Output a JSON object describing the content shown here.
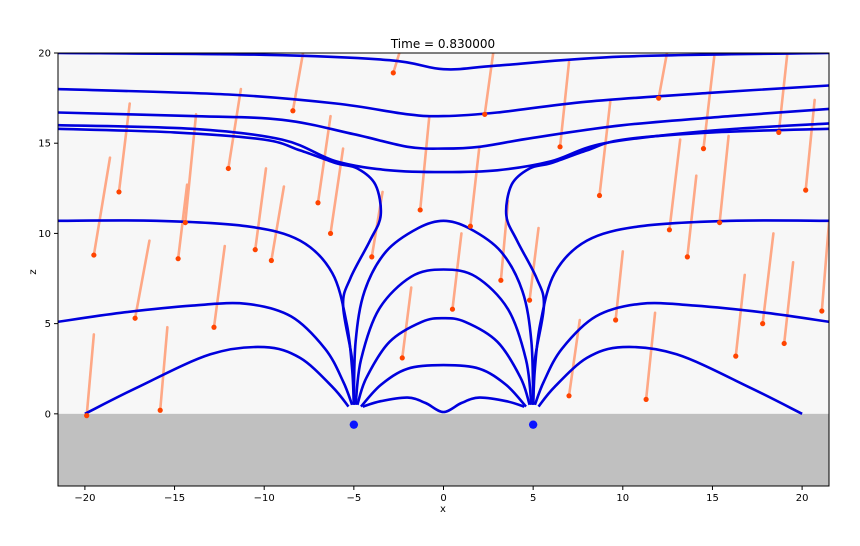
{
  "chart_data": {
    "type": "line",
    "title": "Time = 0.830000",
    "xlabel": "x",
    "ylabel": "z",
    "xlim": [
      -21.5,
      21.5
    ],
    "ylim": [
      -4,
      20
    ],
    "xticks": [
      -20,
      -15,
      -10,
      -5,
      0,
      5,
      10,
      15,
      20
    ],
    "yticks": [
      0,
      5,
      10,
      15,
      20
    ],
    "grid": false,
    "ground_color": "#c0c0c0",
    "background_color": "#f7f7f7",
    "line_color": "#0000dd",
    "particle_color": "#ff4400",
    "trail_color": "#ffa07a",
    "sources": [
      {
        "x": -5,
        "z": -0.6
      },
      {
        "x": 5,
        "z": -0.6
      }
    ],
    "field_lines": [
      {
        "points": [
          [
            -21.5,
            20.0
          ],
          [
            -10,
            19.9
          ],
          [
            -3,
            19.6
          ],
          [
            0,
            19.1
          ],
          [
            3,
            19.3
          ],
          [
            10,
            19.8
          ],
          [
            21.5,
            20.0
          ]
        ]
      },
      {
        "points": [
          [
            -21.5,
            18.0
          ],
          [
            -12,
            17.7
          ],
          [
            -6,
            17.2
          ],
          [
            -2,
            16.6
          ],
          [
            0,
            16.5
          ],
          [
            3,
            16.7
          ],
          [
            8,
            17.3
          ],
          [
            15,
            17.8
          ],
          [
            21.5,
            18.2
          ]
        ]
      },
      {
        "points": [
          [
            -21.5,
            16.7
          ],
          [
            -14,
            16.5
          ],
          [
            -9,
            16.3
          ],
          [
            -5,
            15.5
          ],
          [
            -2,
            14.8
          ],
          [
            0,
            14.7
          ],
          [
            2,
            14.8
          ],
          [
            5,
            15.3
          ],
          [
            10,
            16.0
          ],
          [
            16,
            16.5
          ],
          [
            21.5,
            16.9
          ]
        ]
      },
      {
        "points": [
          [
            -21.5,
            16.0
          ],
          [
            -14,
            15.8
          ],
          [
            -9,
            15.2
          ],
          [
            -6,
            14.0
          ],
          [
            -3,
            13.5
          ],
          [
            0,
            13.4
          ],
          [
            3,
            13.5
          ],
          [
            6,
            14.0
          ],
          [
            9,
            15.0
          ],
          [
            15,
            15.7
          ],
          [
            21.5,
            16.1
          ]
        ]
      },
      {
        "points": [
          [
            -21.5,
            10.7
          ],
          [
            -16,
            10.7
          ],
          [
            -11,
            10.4
          ],
          [
            -8,
            9.6
          ],
          [
            -6.2,
            7.8
          ],
          [
            -5.4,
            5.0
          ],
          [
            -5.1,
            2.5
          ],
          [
            -5.0,
            0.5
          ]
        ]
      },
      {
        "points": [
          [
            -21.5,
            5.1
          ],
          [
            -18,
            5.6
          ],
          [
            -14,
            6.0
          ],
          [
            -11,
            6.1
          ],
          [
            -8.5,
            5.4
          ],
          [
            -6.6,
            3.6
          ],
          [
            -5.6,
            1.8
          ],
          [
            -5.1,
            0.5
          ]
        ]
      },
      {
        "points": [
          [
            -20,
            0.0
          ],
          [
            -17,
            1.5
          ],
          [
            -13,
            3.3
          ],
          [
            -10,
            3.7
          ],
          [
            -8,
            3.1
          ],
          [
            -6.2,
            1.5
          ],
          [
            -5.3,
            0.4
          ]
        ]
      },
      {
        "points": [
          [
            -5.0,
            0.6
          ],
          [
            -5.1,
            3.0
          ],
          [
            -5.6,
            6.0
          ],
          [
            -5.2,
            7.5
          ],
          [
            -4.1,
            9.6
          ],
          [
            -3.5,
            11.0
          ],
          [
            -3.8,
            12.7
          ],
          [
            -4.8,
            13.6
          ],
          [
            -6,
            13.9
          ],
          [
            -8,
            14.6
          ],
          [
            -10,
            15.2
          ],
          [
            -15,
            15.6
          ],
          [
            -21.5,
            15.8
          ]
        ]
      }
    ],
    "particles": [
      {
        "head": [
          -19.5,
          8.8
        ],
        "tail": [
          -18.6,
          14.2
        ]
      },
      {
        "head": [
          -18.1,
          12.3
        ],
        "tail": [
          -17.5,
          17.2
        ]
      },
      {
        "head": [
          -17.2,
          5.3
        ],
        "tail": [
          -16.4,
          9.6
        ]
      },
      {
        "head": [
          -14.4,
          10.6
        ],
        "tail": [
          -13.8,
          16.6
        ]
      },
      {
        "head": [
          -12.0,
          13.6
        ],
        "tail": [
          -11.3,
          18.0
        ]
      },
      {
        "head": [
          -10.5,
          9.1
        ],
        "tail": [
          -9.9,
          13.6
        ]
      },
      {
        "head": [
          -9.6,
          8.5
        ],
        "tail": [
          -8.9,
          12.6
        ]
      },
      {
        "head": [
          -7.0,
          11.7
        ],
        "tail": [
          -6.3,
          16.5
        ]
      },
      {
        "head": [
          -6.3,
          10.0
        ],
        "tail": [
          -5.6,
          14.7
        ]
      },
      {
        "head": [
          -4.0,
          8.7
        ],
        "tail": [
          -3.4,
          12.3
        ]
      },
      {
        "head": [
          -2.3,
          3.1
        ],
        "tail": [
          -1.8,
          7.0
        ]
      },
      {
        "head": [
          -1.3,
          11.3
        ],
        "tail": [
          -0.8,
          16.4
        ]
      },
      {
        "head": [
          0.5,
          5.8
        ],
        "tail": [
          1.0,
          10.0
        ]
      },
      {
        "head": [
          1.5,
          10.4
        ],
        "tail": [
          2.0,
          14.8
        ]
      },
      {
        "head": [
          3.2,
          7.4
        ],
        "tail": [
          3.6,
          11.8
        ]
      },
      {
        "head": [
          4.8,
          6.3
        ],
        "tail": [
          5.3,
          10.3
        ]
      },
      {
        "head": [
          7.0,
          1.0
        ],
        "tail": [
          7.6,
          5.2
        ]
      },
      {
        "head": [
          8.7,
          12.1
        ],
        "tail": [
          9.3,
          17.3
        ]
      },
      {
        "head": [
          9.6,
          5.2
        ],
        "tail": [
          10.0,
          9.0
        ]
      },
      {
        "head": [
          11.3,
          0.8
        ],
        "tail": [
          11.8,
          5.6
        ]
      },
      {
        "head": [
          12.6,
          10.2
        ],
        "tail": [
          13.2,
          15.2
        ]
      },
      {
        "head": [
          13.6,
          8.7
        ],
        "tail": [
          14.1,
          13.2
        ]
      },
      {
        "head": [
          14.5,
          14.7
        ],
        "tail": [
          15.1,
          19.8
        ]
      },
      {
        "head": [
          15.4,
          10.6
        ],
        "tail": [
          15.9,
          15.4
        ]
      },
      {
        "head": [
          16.3,
          3.2
        ],
        "tail": [
          16.8,
          7.7
        ]
      },
      {
        "head": [
          17.8,
          5.0
        ],
        "tail": [
          18.4,
          10.0
        ]
      },
      {
        "head": [
          19.0,
          3.9
        ],
        "tail": [
          19.5,
          8.4
        ]
      },
      {
        "head": [
          20.2,
          12.4
        ],
        "tail": [
          20.7,
          17.4
        ]
      },
      {
        "head": [
          21.1,
          5.7
        ],
        "tail": [
          21.5,
          10.6
        ]
      },
      {
        "head": [
          -15.8,
          0.2
        ],
        "tail": [
          -15.4,
          4.8
        ]
      },
      {
        "head": [
          -19.9,
          -0.1
        ],
        "tail": [
          -19.5,
          4.4
        ]
      },
      {
        "head": [
          -12.8,
          4.8
        ],
        "tail": [
          -12.2,
          9.3
        ]
      },
      {
        "head": [
          -8.4,
          16.8
        ],
        "tail": [
          -7.8,
          20.2
        ]
      },
      {
        "head": [
          2.3,
          16.6
        ],
        "tail": [
          2.8,
          20.2
        ]
      },
      {
        "head": [
          12.0,
          17.5
        ],
        "tail": [
          12.5,
          20.2
        ]
      },
      {
        "head": [
          -2.8,
          18.9
        ],
        "tail": [
          -2.4,
          20.2
        ]
      },
      {
        "head": [
          6.5,
          14.8
        ],
        "tail": [
          7.0,
          19.5
        ]
      },
      {
        "head": [
          -14.8,
          8.6
        ],
        "tail": [
          -14.3,
          12.7
        ]
      },
      {
        "head": [
          18.7,
          15.6
        ],
        "tail": [
          19.2,
          20.2
        ]
      }
    ]
  }
}
